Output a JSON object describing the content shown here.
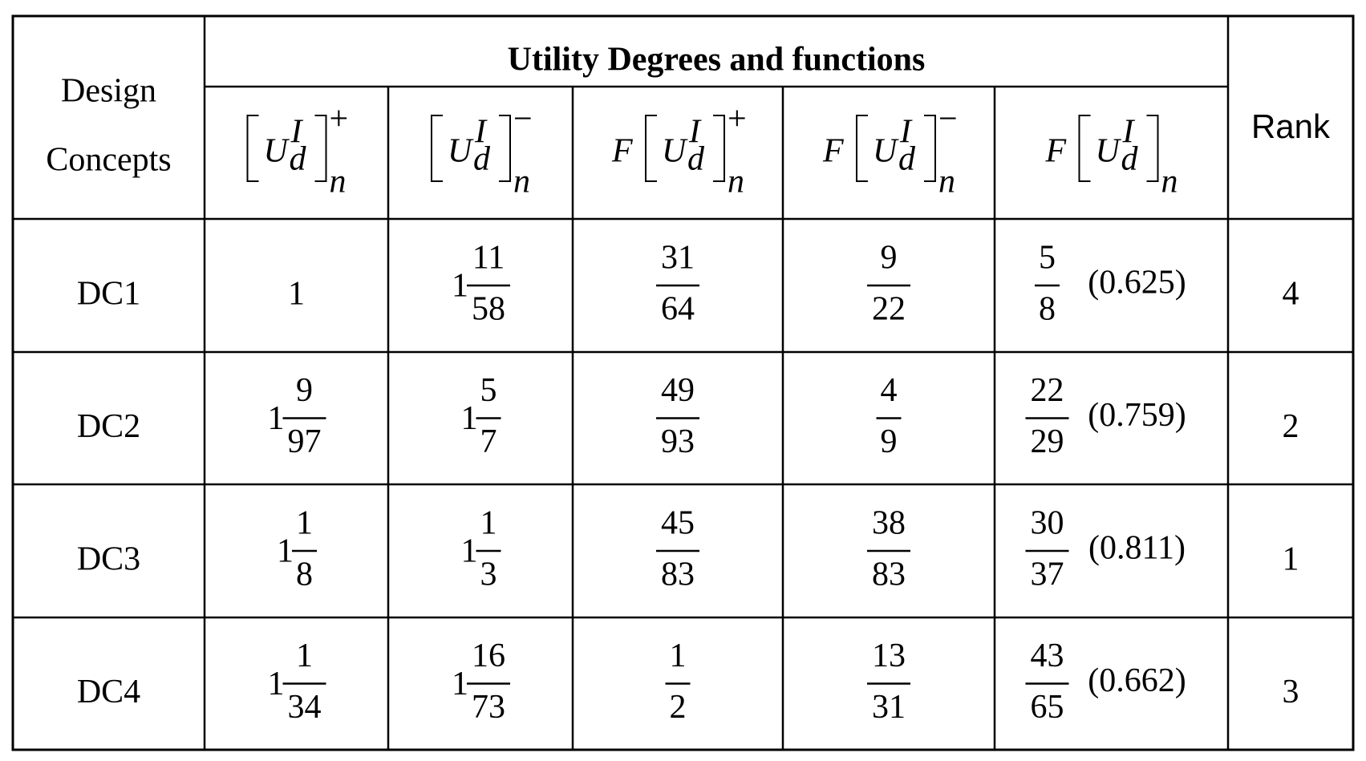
{
  "table": {
    "header": {
      "design_concepts": [
        "Design",
        "Concepts"
      ],
      "group_title": "Utility Degrees and functions",
      "rank": "Rank",
      "columns": [
        {
          "base": "U",
          "sup": "I",
          "sub": "d",
          "outer_sub": "n",
          "outer_sup": "+"
        },
        {
          "base": "U",
          "sup": "I",
          "sub": "d",
          "outer_sub": "n",
          "outer_sup": "−"
        },
        {
          "prefix": "F",
          "base": "U",
          "sup": "I",
          "sub": "d",
          "outer_sub": "n",
          "outer_sup": "+"
        },
        {
          "prefix": "F",
          "base": "U",
          "sup": "I",
          "sub": "d",
          "outer_sub": "n",
          "outer_sup": "−"
        },
        {
          "prefix": "F",
          "base": "U",
          "sup": "I",
          "sub": "d",
          "outer_sub": "n"
        }
      ]
    },
    "rows": [
      {
        "concept": "DC1",
        "cells": [
          {
            "whole": "1"
          },
          {
            "whole": "1",
            "num": "11",
            "den": "58"
          },
          {
            "num": "31",
            "den": "64"
          },
          {
            "num": "9",
            "den": "22"
          },
          {
            "num": "5",
            "den": "8",
            "decimal": "(0.625)"
          }
        ],
        "rank": "4"
      },
      {
        "concept": "DC2",
        "cells": [
          {
            "whole": "1",
            "num": "9",
            "den": "97"
          },
          {
            "whole": "1",
            "num": "5",
            "den": "7"
          },
          {
            "num": "49",
            "den": "93"
          },
          {
            "num": "4",
            "den": "9"
          },
          {
            "num": "22",
            "den": "29",
            "decimal": "(0.759)"
          }
        ],
        "rank": "2"
      },
      {
        "concept": "DC3",
        "cells": [
          {
            "whole": "1",
            "num": "1",
            "den": "8"
          },
          {
            "whole": "1",
            "num": "1",
            "den": "3"
          },
          {
            "num": "45",
            "den": "83"
          },
          {
            "num": "38",
            "den": "83"
          },
          {
            "num": "30",
            "den": "37",
            "decimal": "(0.811)"
          }
        ],
        "rank": "1"
      },
      {
        "concept": "DC4",
        "cells": [
          {
            "whole": "1",
            "num": "1",
            "den": "34"
          },
          {
            "whole": "1",
            "num": "16",
            "den": "73"
          },
          {
            "num": "1",
            "den": "2"
          },
          {
            "num": "13",
            "den": "31"
          },
          {
            "num": "43",
            "den": "65",
            "decimal": "(0.662)"
          }
        ],
        "rank": "3"
      }
    ]
  }
}
